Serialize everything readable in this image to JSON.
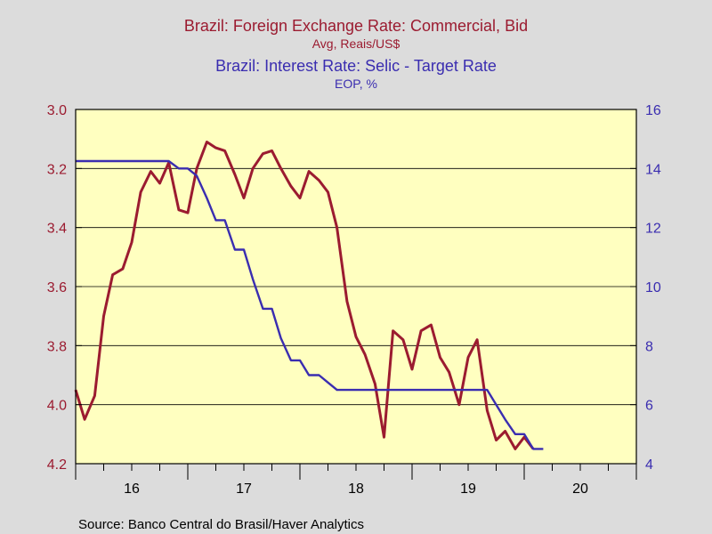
{
  "chart_data": {
    "type": "line",
    "title_1": "Brazil: Foreign Exchange Rate: Commercial, Bid",
    "subtitle_1": "Avg, Reais/US$",
    "title_2": "Brazil: Interest Rate: Selic - Target Rate",
    "subtitle_2": "EOP, %",
    "source": "Source:  Banco Central do Brasil/Haver Analytics",
    "colors": {
      "fx": "#9b1b30",
      "selic": "#3a2db0",
      "plot_bg": "#ffffc0",
      "page_bg": "#dcdcdc"
    },
    "x_axis": {
      "min": 2015.5,
      "max": 2020.5,
      "ticks": [
        {
          "value": 2016.0,
          "label": "16"
        },
        {
          "value": 2017.0,
          "label": "17"
        },
        {
          "value": 2018.0,
          "label": "18"
        },
        {
          "value": 2019.0,
          "label": "19"
        },
        {
          "value": 2020.0,
          "label": "20"
        }
      ]
    },
    "y_left": {
      "min": 3.0,
      "max": 4.2,
      "inverted": true,
      "ticks": [
        "3.0",
        "3.2",
        "3.4",
        "3.6",
        "3.8",
        "4.0",
        "4.2"
      ]
    },
    "y_right": {
      "min": 4,
      "max": 16,
      "ticks": [
        "16",
        "14",
        "12",
        "10",
        "8",
        "6",
        "4"
      ]
    },
    "grid": "horizontal",
    "series": [
      {
        "axis": "left",
        "x": [
          2015.5,
          2015.58,
          2015.67,
          2015.75,
          2015.83,
          2015.92,
          2016.0,
          2016.08,
          2016.17,
          2016.25,
          2016.33,
          2016.42,
          2016.5,
          2016.58,
          2016.67,
          2016.75,
          2016.83,
          2016.92,
          2017.0,
          2017.08,
          2017.17,
          2017.25,
          2017.33,
          2017.42,
          2017.5,
          2017.58,
          2017.67,
          2017.75,
          2017.83,
          2017.92,
          2018.0,
          2018.08,
          2018.17,
          2018.25,
          2018.33,
          2018.42,
          2018.5,
          2018.58,
          2018.67,
          2018.75,
          2018.83,
          2018.92,
          2019.0,
          2019.08,
          2019.17,
          2019.25,
          2019.33,
          2019.42,
          2019.5,
          2019.58
        ],
        "values": [
          3.95,
          4.05,
          3.97,
          3.7,
          3.56,
          3.54,
          3.45,
          3.28,
          3.21,
          3.25,
          3.18,
          3.34,
          3.35,
          3.2,
          3.11,
          3.13,
          3.14,
          3.22,
          3.3,
          3.2,
          3.15,
          3.14,
          3.2,
          3.26,
          3.3,
          3.21,
          3.24,
          3.28,
          3.4,
          3.65,
          3.77,
          3.83,
          3.93,
          4.11,
          3.75,
          3.78,
          3.88,
          3.75,
          3.73,
          3.84,
          3.89,
          4.0,
          3.84,
          3.78,
          4.02,
          4.12,
          4.09,
          4.15,
          4.11,
          4.15
        ]
      },
      {
        "axis": "right",
        "x": [
          2015.5,
          2015.58,
          2015.67,
          2015.75,
          2015.83,
          2015.92,
          2016.0,
          2016.08,
          2016.17,
          2016.25,
          2016.33,
          2016.42,
          2016.5,
          2016.58,
          2016.67,
          2016.75,
          2016.83,
          2016.92,
          2017.0,
          2017.08,
          2017.17,
          2017.25,
          2017.33,
          2017.42,
          2017.5,
          2017.58,
          2017.67,
          2017.75,
          2017.83,
          2017.92,
          2018.0,
          2018.08,
          2018.17,
          2018.25,
          2018.33,
          2018.42,
          2018.5,
          2018.58,
          2018.67,
          2018.75,
          2018.83,
          2018.92,
          2019.0,
          2019.08,
          2019.17,
          2019.25,
          2019.33,
          2019.42,
          2019.5,
          2019.58,
          2019.67
        ],
        "values": [
          14.25,
          14.25,
          14.25,
          14.25,
          14.25,
          14.25,
          14.25,
          14.25,
          14.25,
          14.25,
          14.25,
          14.0,
          14.0,
          13.75,
          13.0,
          12.25,
          12.25,
          11.25,
          11.25,
          10.25,
          9.25,
          9.25,
          8.25,
          7.5,
          7.5,
          7.0,
          7.0,
          6.75,
          6.5,
          6.5,
          6.5,
          6.5,
          6.5,
          6.5,
          6.5,
          6.5,
          6.5,
          6.5,
          6.5,
          6.5,
          6.5,
          6.5,
          6.5,
          6.5,
          6.5,
          6.0,
          5.5,
          5.0,
          5.0,
          4.5,
          4.5
        ]
      }
    ]
  }
}
